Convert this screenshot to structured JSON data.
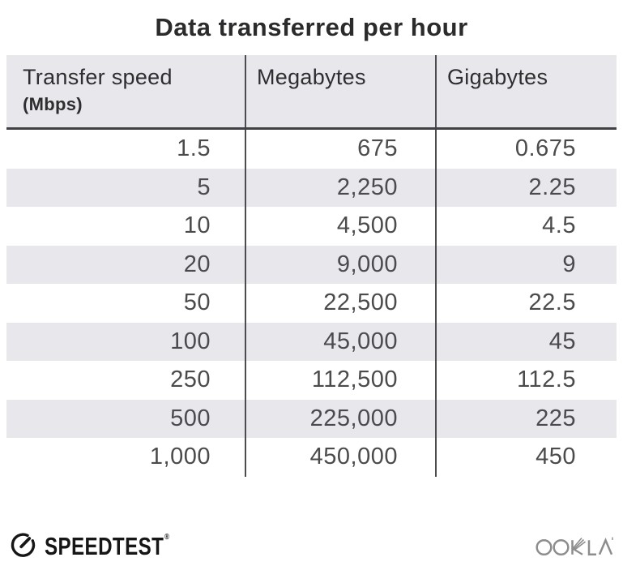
{
  "title": "Data transferred per hour",
  "chart_data": {
    "type": "table",
    "title": "Data transferred per hour",
    "columns": [
      "Transfer speed (Mbps)",
      "Megabytes",
      "Gigabytes"
    ],
    "rows": [
      [
        1.5,
        675,
        0.675
      ],
      [
        5,
        2250,
        2.25
      ],
      [
        10,
        4500,
        4.5
      ],
      [
        20,
        9000,
        9
      ],
      [
        50,
        22500,
        22.5
      ],
      [
        100,
        45000,
        45
      ],
      [
        250,
        112500,
        112.5
      ],
      [
        500,
        225000,
        225
      ],
      [
        1000,
        450000,
        450
      ]
    ]
  },
  "table": {
    "header": {
      "col1_label": "Transfer speed",
      "col1_sublabel": "(Mbps)",
      "col2_label": "Megabytes",
      "col3_label": "Gigabytes"
    },
    "rows": [
      {
        "speed": "1.5",
        "megabytes": "675",
        "gigabytes": "0.675"
      },
      {
        "speed": "5",
        "megabytes": "2,250",
        "gigabytes": "2.25"
      },
      {
        "speed": "10",
        "megabytes": "4,500",
        "gigabytes": "4.5"
      },
      {
        "speed": "20",
        "megabytes": "9,000",
        "gigabytes": "9"
      },
      {
        "speed": "50",
        "megabytes": "22,500",
        "gigabytes": "22.5"
      },
      {
        "speed": "100",
        "megabytes": "45,000",
        "gigabytes": "45"
      },
      {
        "speed": "250",
        "megabytes": "112,500",
        "gigabytes": "112.5"
      },
      {
        "speed": "500",
        "megabytes": "225,000",
        "gigabytes": "225"
      },
      {
        "speed": "1,000",
        "megabytes": "450,000",
        "gigabytes": "450"
      }
    ]
  },
  "footer": {
    "speedtest": "SPEEDTEST",
    "speedtest_mark": "®",
    "ookla": "OOKLA"
  },
  "colors": {
    "stripe": "#e8e8ec",
    "header_bg": "#e8e8ec",
    "divider": "#4c4b4e",
    "header_rule": "#414043",
    "title_text": "#2b2b2d",
    "data_text": "#4b4a4d",
    "speedtest_black": "#161616",
    "ookla_gray": "#8d8d8f"
  }
}
